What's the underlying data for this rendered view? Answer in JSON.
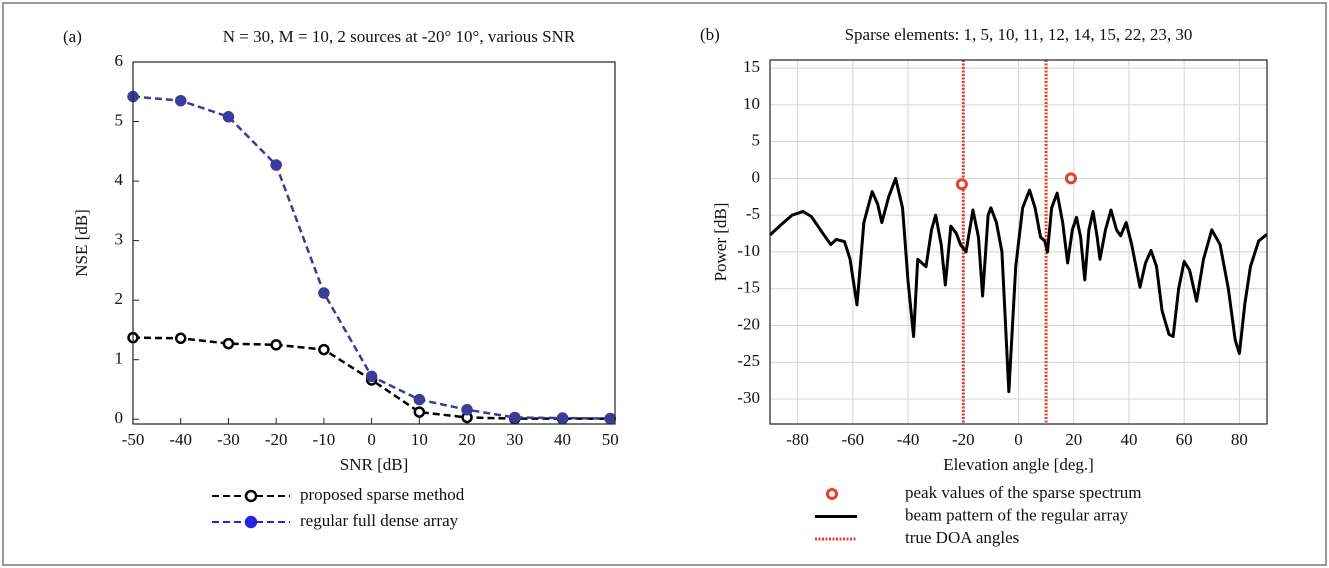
{
  "chart_data": [
    {
      "type": "line",
      "label": "(a)",
      "title": "N = 30, M = 10, 2 sources at -20° 10°, various SNR",
      "x_label": "SNR [dB]",
      "y_label": "NSE [dB]",
      "x": [
        -50,
        -40,
        -30,
        -20,
        -10,
        0,
        10,
        20,
        30,
        40,
        50
      ],
      "series": [
        {
          "name": "proposed sparse method",
          "color": "#000000",
          "marker": "open",
          "dashed": true,
          "values": [
            1.37,
            1.36,
            1.27,
            1.25,
            1.17,
            0.66,
            0.12,
            0.03,
            0.01,
            0.01,
            0.01
          ]
        },
        {
          "name": "regular full dense array",
          "color": "#3d3a9a",
          "marker": "filled",
          "dashed": true,
          "values": [
            5.42,
            5.35,
            5.08,
            4.27,
            2.12,
            0.72,
            0.33,
            0.16,
            0.03,
            0.02,
            0.01
          ]
        }
      ],
      "xlim": [
        -50,
        51
      ],
      "ylim": [
        -0.08,
        6
      ],
      "xticks": [
        -50,
        -40,
        -30,
        -20,
        -10,
        0,
        10,
        20,
        30,
        40,
        50
      ],
      "yticks": [
        0,
        1,
        2,
        3,
        4,
        5,
        6
      ],
      "grid": false
    },
    {
      "type": "line",
      "label": "(b)",
      "title": "Sparse elements: 1, 5, 10, 11, 12, 14, 15, 22, 23, 30",
      "x_label": "Elevation angle [deg.]",
      "y_label": "Power [dB]",
      "series": [
        {
          "name": "peak values of the sparse spectrum",
          "color": "#e8412c",
          "kind": "scatter",
          "x": [
            -20.5,
            19
          ],
          "values": [
            -0.8,
            0
          ]
        },
        {
          "name": "beam pattern of the regular array",
          "color": "#000000",
          "kind": "line",
          "x": [
            -90,
            -86,
            -82,
            -78,
            -75,
            -71,
            -68,
            -66,
            -63,
            -61,
            -58.5,
            -56,
            -53,
            -51,
            -49.5,
            -47,
            -44.5,
            -42,
            -40,
            -38,
            -36.5,
            -35,
            -33.5,
            -31.5,
            -30,
            -28,
            -26.5,
            -24.5,
            -22.5,
            -21,
            -19,
            -16.5,
            -14.5,
            -13,
            -11,
            -10,
            -8,
            -6,
            -3.5,
            -1,
            1.5,
            4,
            6,
            8,
            9.5,
            10.5,
            12,
            14,
            16,
            17.8,
            19.5,
            21,
            22.5,
            24,
            25.5,
            27,
            28.5,
            29.5,
            31.5,
            33.5,
            35.5,
            37,
            39,
            41,
            44,
            46,
            48,
            50,
            52,
            54.5,
            56,
            58,
            60,
            62,
            64.5,
            67,
            70,
            73,
            76,
            78.5,
            80,
            82,
            84,
            87,
            90
          ],
          "values": [
            -7.7,
            -6.3,
            -5,
            -4.5,
            -5.2,
            -7.4,
            -9,
            -8.3,
            -8.6,
            -11,
            -17.2,
            -6,
            -1.8,
            -3.5,
            -6,
            -2.5,
            0,
            -4,
            -14,
            -21.5,
            -11,
            -11.5,
            -12,
            -7,
            -5,
            -9,
            -14.5,
            -6.5,
            -7.5,
            -9,
            -10,
            -4.3,
            -8,
            -16,
            -5,
            -4,
            -6,
            -10,
            -29,
            -12,
            -4,
            -1.6,
            -4,
            -8,
            -8.5,
            -10,
            -4,
            -2,
            -6,
            -11.5,
            -7,
            -5.3,
            -8,
            -13.8,
            -7,
            -4.5,
            -8,
            -11,
            -7,
            -4.3,
            -7,
            -7.8,
            -6,
            -9,
            -14.8,
            -11.5,
            -9.8,
            -12,
            -18,
            -21.2,
            -21.5,
            -15,
            -11.3,
            -12.5,
            -16.7,
            -11,
            -7,
            -9,
            -15,
            -22,
            -23.8,
            -17,
            -12,
            -8.5,
            -7.6
          ]
        }
      ],
      "vlines": {
        "name": "true DOA angles",
        "color": "#e8412c",
        "x": [
          -20,
          10
        ]
      },
      "xlim": [
        -90,
        90
      ],
      "ylim": [
        -33.4,
        16.1
      ],
      "xticks": [
        -80,
        -60,
        -40,
        -20,
        0,
        20,
        40,
        60,
        80
      ],
      "yticks": [
        15,
        10,
        5,
        0,
        -5,
        -10,
        -15,
        -20,
        -25,
        -30
      ],
      "grid": true
    }
  ]
}
